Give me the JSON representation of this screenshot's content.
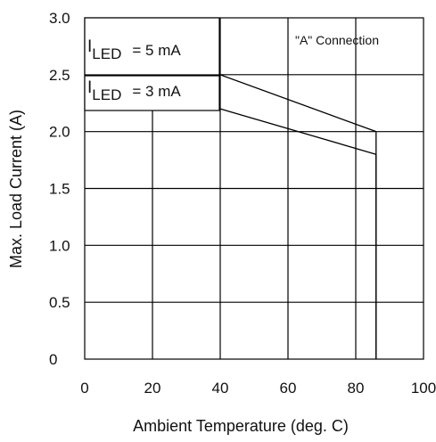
{
  "chart_data": {
    "type": "line",
    "title": "",
    "xlabel": "Ambient Temperature (deg. C)",
    "ylabel": "Max. Load Current (A)",
    "xlim": [
      0,
      100
    ],
    "ylim": [
      0,
      3.0
    ],
    "x_ticks": [
      "0",
      "20",
      "40",
      "60",
      "80",
      "100"
    ],
    "y_ticks": [
      "0",
      "0.5",
      "1.0",
      "1.5",
      "2.0",
      "2.5",
      "3.0"
    ],
    "grid": true,
    "annotation": "\"A\" Connection",
    "series": [
      {
        "label_prefix": "I",
        "label_sub": "LED",
        "label_value": "= 5 mA",
        "x": [
          40,
          86
        ],
        "y": [
          2.5,
          2.0
        ]
      },
      {
        "label_prefix": "I",
        "label_sub": "LED",
        "label_value": "= 3 mA",
        "x": [
          40,
          86
        ],
        "y": [
          2.2,
          1.8
        ]
      }
    ]
  }
}
